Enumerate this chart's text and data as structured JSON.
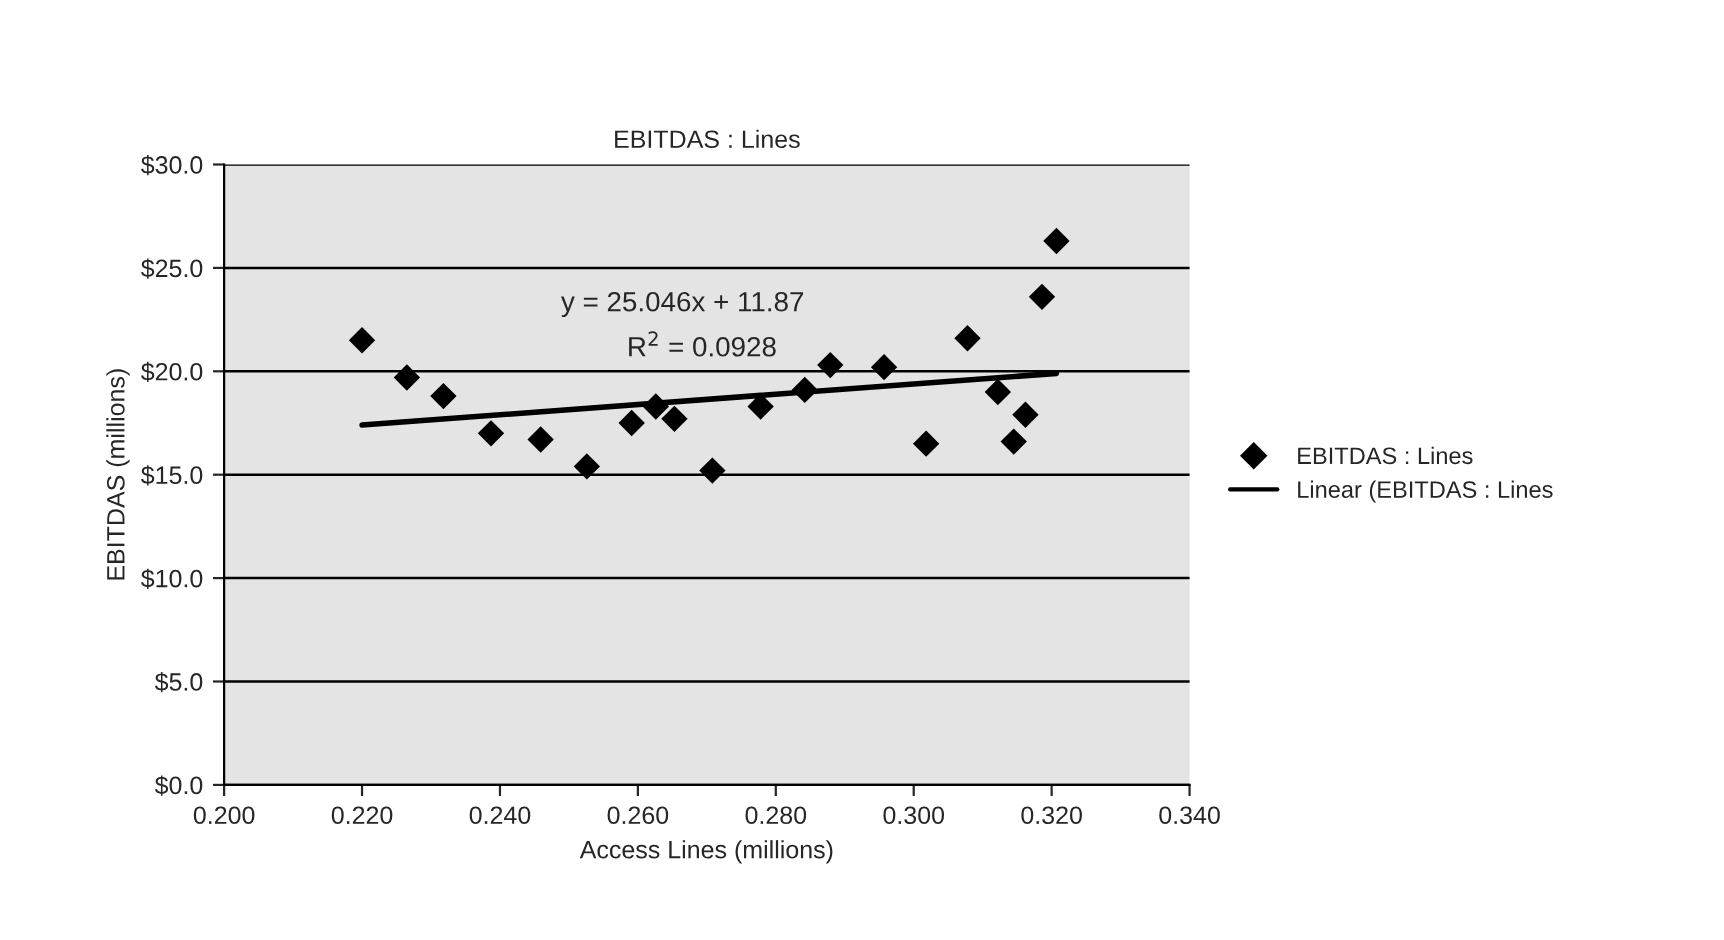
{
  "chart_data": {
    "type": "scatter",
    "title": "EBITDAS : Lines",
    "xlabel": "Access Lines (millions)",
    "ylabel": "EBITDAS (millions)",
    "series": [
      {
        "name": "EBITDAS : Lines",
        "color": "#000000",
        "marker": "diamond",
        "x": [
          0.22,
          0.2265,
          0.2318,
          0.2387,
          0.2459,
          0.2526,
          0.2591,
          0.2626,
          0.2653,
          0.2708,
          0.2778,
          0.2842,
          0.2879,
          0.2957,
          0.3018,
          0.3078,
          0.3122,
          0.3145,
          0.3162,
          0.3186,
          0.3207
        ],
        "values": [
          21.5,
          19.7,
          18.8,
          17.0,
          16.7,
          15.4,
          17.5,
          18.3,
          17.7,
          15.2,
          18.3,
          19.1,
          20.3,
          20.2,
          16.5,
          21.6,
          19.0,
          16.6,
          17.9,
          23.6,
          26.3
        ]
      },
      {
        "name": "Linear (EBITDAS : Lines",
        "type": "line",
        "color": "#000000",
        "marker": "none",
        "line_style": "solid",
        "x": [
          0.22,
          0.3207
        ],
        "values": [
          17.4,
          19.9
        ]
      }
    ],
    "annotations": [
      "y = 25.046x + 11.87",
      "R$^{2}$ = 0.0928"
    ],
    "xlim": [
      0.2,
      0.34
    ],
    "xticks": [
      {
        "value": 0.2,
        "label": "0.200"
      },
      {
        "value": 0.22,
        "label": "0.220"
      },
      {
        "value": 0.24,
        "label": "0.240"
      },
      {
        "value": 0.26,
        "label": "0.260"
      },
      {
        "value": 0.28,
        "label": "0.280"
      },
      {
        "value": 0.3,
        "label": "0.300"
      },
      {
        "value": 0.32,
        "label": "0.320"
      },
      {
        "value": 0.34,
        "label": "0.340"
      }
    ],
    "ylim": [
      0,
      30
    ],
    "yticks": [
      {
        "value": 0,
        "label": "$0.0"
      },
      {
        "value": 5,
        "label": "$5.0"
      },
      {
        "value": 10,
        "label": "$10.0"
      },
      {
        "value": 15,
        "label": "$15.0"
      },
      {
        "value": 20,
        "label": "$20.0"
      },
      {
        "value": 25,
        "label": "$25.0"
      },
      {
        "value": 30,
        "label": "$30.0"
      }
    ],
    "grid": "y",
    "legend": "right"
  }
}
